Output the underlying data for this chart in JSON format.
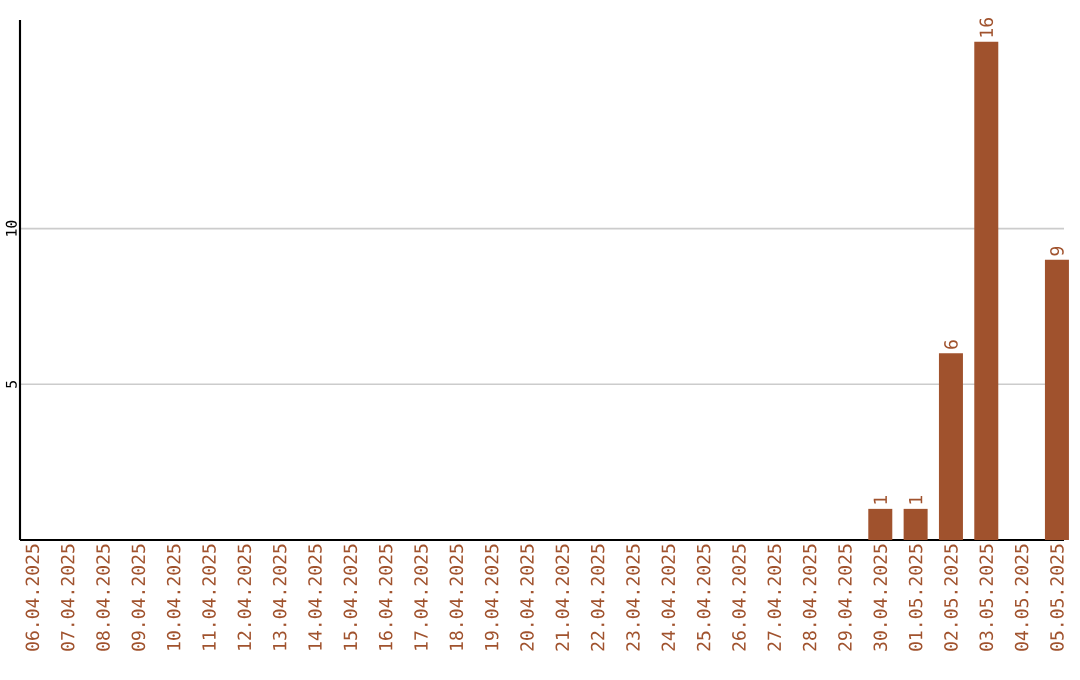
{
  "chart_data": {
    "type": "bar",
    "categories": [
      "06.04.2025",
      "07.04.2025",
      "08.04.2025",
      "09.04.2025",
      "10.04.2025",
      "11.04.2025",
      "12.04.2025",
      "13.04.2025",
      "14.04.2025",
      "15.04.2025",
      "16.04.2025",
      "17.04.2025",
      "18.04.2025",
      "19.04.2025",
      "20.04.2025",
      "21.04.2025",
      "22.04.2025",
      "23.04.2025",
      "24.04.2025",
      "25.04.2025",
      "26.04.2025",
      "27.04.2025",
      "28.04.2025",
      "29.04.2025",
      "30.04.2025",
      "01.05.2025",
      "02.05.2025",
      "03.05.2025",
      "04.05.2025",
      "05.05.2025"
    ],
    "values": [
      0,
      0,
      0,
      0,
      0,
      0,
      0,
      0,
      0,
      0,
      0,
      0,
      0,
      0,
      0,
      0,
      0,
      0,
      0,
      0,
      0,
      0,
      0,
      0,
      1,
      1,
      6,
      16,
      0,
      9
    ],
    "value_labels": [
      null,
      null,
      null,
      null,
      null,
      null,
      null,
      null,
      null,
      null,
      null,
      null,
      null,
      null,
      null,
      null,
      null,
      null,
      null,
      null,
      null,
      null,
      null,
      null,
      "1",
      "1",
      "6",
      "16",
      null,
      "9"
    ],
    "color": "#a0522d",
    "ylim": [
      0,
      16.7
    ],
    "yticks": [
      5,
      10
    ],
    "grid": "y"
  }
}
